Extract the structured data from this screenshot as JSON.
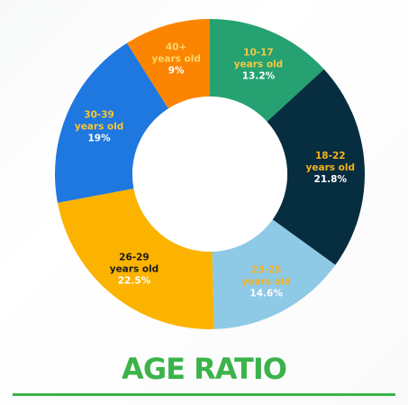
{
  "title": "AGE RATIO",
  "colors": {
    "title": "#3bb34a",
    "hole": "#ffffff"
  },
  "chart_data": {
    "type": "pie",
    "donut": true,
    "title": "AGE RATIO",
    "slices": [
      {
        "group": "10-17",
        "suffix": "years old",
        "pct_label": "13.2%",
        "value": 13.2,
        "color": "#25a172",
        "label_color": "#f6c944",
        "pct_color": "#ffffff"
      },
      {
        "group": "18-22",
        "suffix": "years old",
        "pct_label": "21.8%",
        "value": 21.8,
        "color": "#072d40",
        "label_color": "#f6b21a",
        "pct_color": "#ffffff"
      },
      {
        "group": "23-25",
        "suffix": "years old",
        "pct_label": "14.6%",
        "value": 14.6,
        "color": "#8ec9e6",
        "label_color": "#f4b223",
        "pct_color": "#ffffff"
      },
      {
        "group": "26-29",
        "suffix": "years old",
        "pct_label": "22.5%",
        "value": 22.5,
        "color": "#fbb300",
        "label_color": "#1b1b1b",
        "pct_color": "#ffffff"
      },
      {
        "group": "30-39",
        "suffix": "years old",
        "pct_label": "19%",
        "value": 19,
        "color": "#1f77e0",
        "label_color": "#fbc531",
        "pct_color": "#ffffff"
      },
      {
        "group": "40+",
        "suffix": "years old",
        "pct_label": "9%",
        "value": 9,
        "color": "#fb8500",
        "label_color": "#fcd46a",
        "pct_color": "#ffffff"
      }
    ]
  }
}
